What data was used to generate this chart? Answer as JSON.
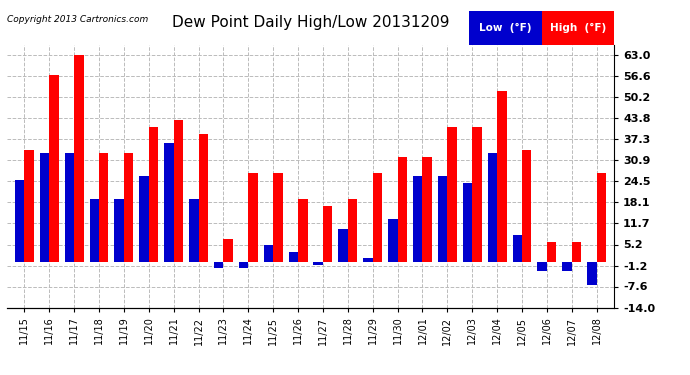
{
  "title": "Dew Point Daily High/Low 20131209",
  "copyright": "Copyright 2013 Cartronics.com",
  "yticks": [
    -14.0,
    -7.6,
    -1.2,
    5.2,
    11.7,
    18.1,
    24.5,
    30.9,
    37.3,
    43.8,
    50.2,
    56.6,
    63.0
  ],
  "ylim": [
    -14.0,
    66.0
  ],
  "dates": [
    "11/15",
    "11/16",
    "11/17",
    "11/18",
    "11/19",
    "11/20",
    "11/21",
    "11/22",
    "11/23",
    "11/24",
    "11/25",
    "11/26",
    "11/27",
    "11/28",
    "11/29",
    "11/30",
    "12/01",
    "12/02",
    "12/03",
    "12/04",
    "12/05",
    "12/06",
    "12/07",
    "12/08"
  ],
  "high": [
    34.0,
    57.0,
    63.0,
    33.0,
    33.0,
    41.0,
    43.0,
    39.0,
    7.0,
    27.0,
    27.0,
    19.0,
    17.0,
    19.0,
    27.0,
    32.0,
    32.0,
    41.0,
    41.0,
    52.0,
    34.0,
    6.0,
    6.0,
    27.0
  ],
  "low": [
    25.0,
    33.0,
    33.0,
    19.0,
    19.0,
    26.0,
    36.0,
    19.0,
    -2.0,
    -2.0,
    5.0,
    3.0,
    -1.0,
    10.0,
    1.0,
    13.0,
    26.0,
    26.0,
    24.0,
    33.0,
    8.0,
    -3.0,
    -3.0,
    -7.0
  ],
  "high_color": "#ff0000",
  "low_color": "#0000cd",
  "bg_color": "#ffffff",
  "grid_color": "#bbbbbb",
  "bar_width": 0.38
}
